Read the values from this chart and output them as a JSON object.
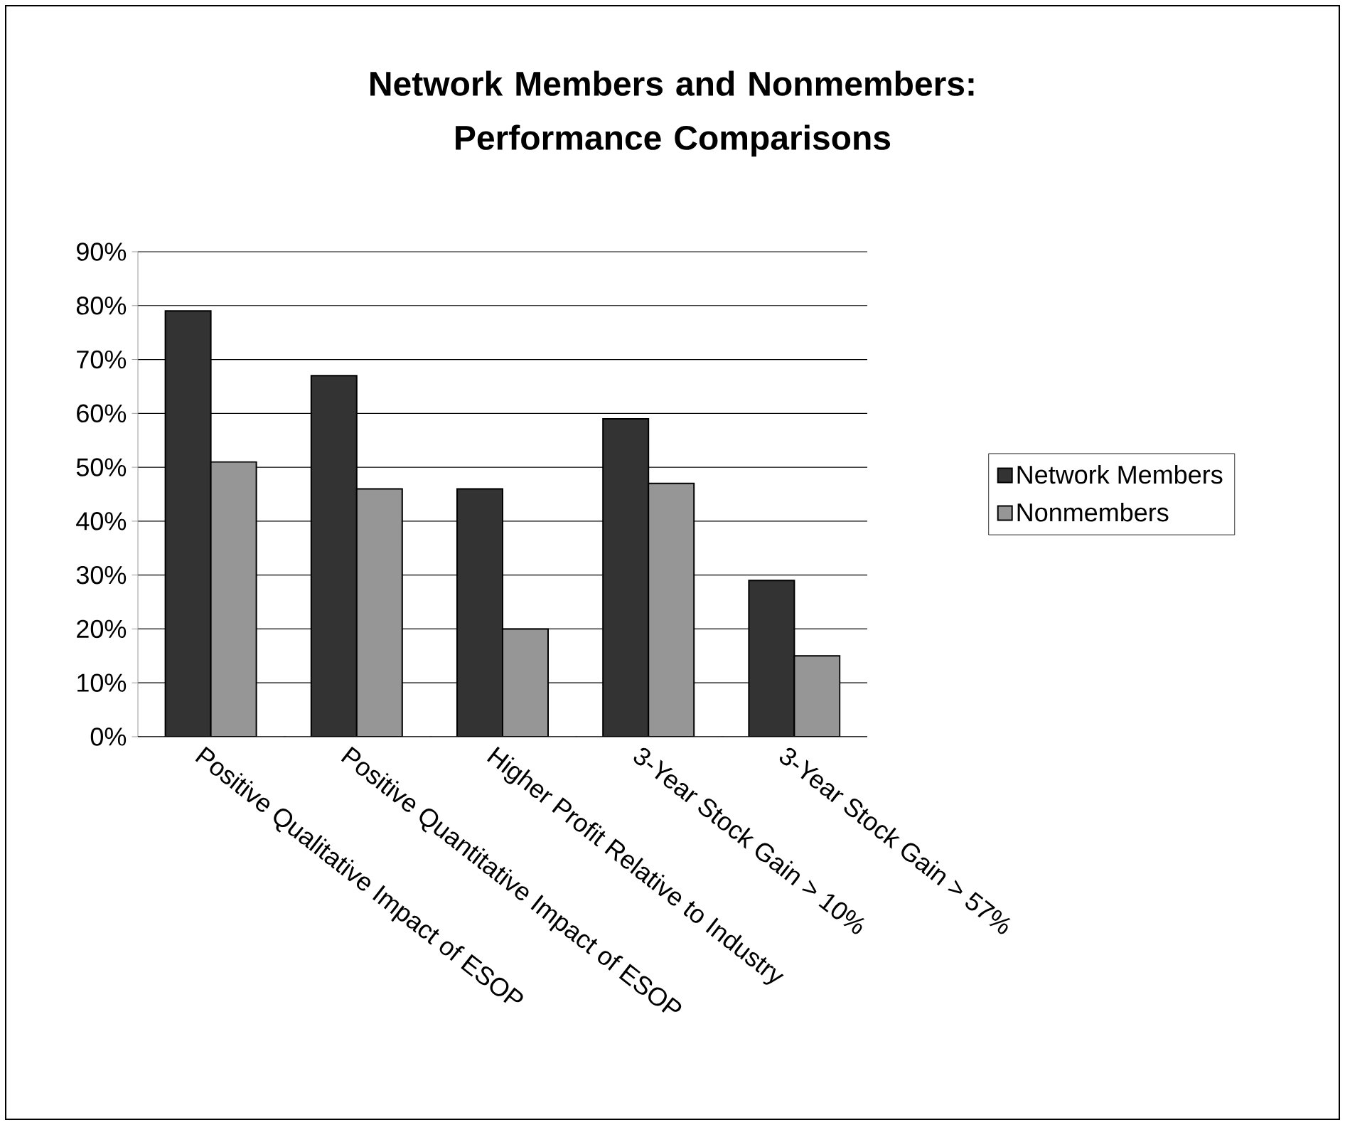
{
  "chart_data": {
    "type": "bar",
    "title": "Network Members and Nonmembers: Performance Comparisons",
    "categories": [
      "Positive Qualitative Impact of ESOP",
      "Positive Quantitative Impact of ESOP",
      "Higher Profit Relative to Industry",
      "3-Year Stock Gain > 10%",
      "3-Year Stock Gain > 57%"
    ],
    "series": [
      {
        "name": "Network Members",
        "color": "#333333",
        "values": [
          79,
          67,
          46,
          59,
          29
        ]
      },
      {
        "name": "Nonmembers",
        "color": "#969696",
        "values": [
          51,
          46,
          20,
          47,
          15
        ]
      }
    ],
    "ylim": [
      0,
      90
    ],
    "yticks": [
      {
        "value": 0,
        "label": "0%"
      },
      {
        "value": 10,
        "label": "10%"
      },
      {
        "value": 20,
        "label": "20%"
      },
      {
        "value": 30,
        "label": "30%"
      },
      {
        "value": 40,
        "label": "40%"
      },
      {
        "value": 50,
        "label": "50%"
      },
      {
        "value": 60,
        "label": "60%"
      },
      {
        "value": 70,
        "label": "70%"
      },
      {
        "value": 80,
        "label": "80%"
      },
      {
        "value": 90,
        "label": "90%"
      }
    ],
    "grid": "y",
    "legend": "right"
  }
}
